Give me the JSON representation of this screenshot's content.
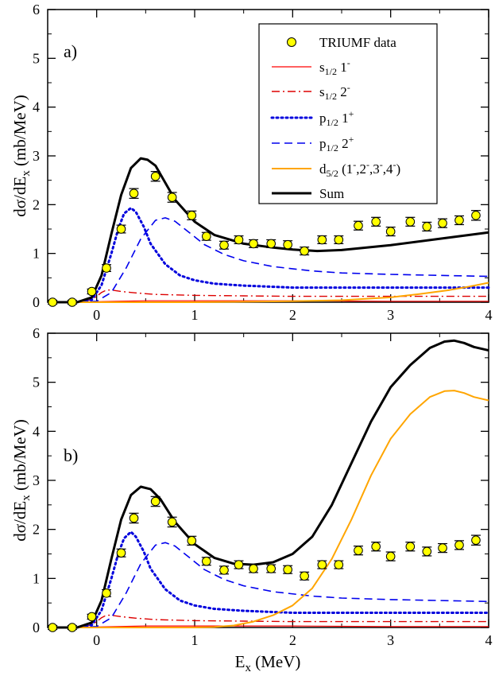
{
  "figure": {
    "xlabel": "E",
    "xlabel_sub": "x",
    "xlabel_unit": " (MeV)",
    "ylabel_pre": "dσ/dE",
    "ylabel_sub": "x",
    "ylabel_unit": " (mb/MeV)"
  },
  "chart_data": [
    {
      "type": "line",
      "panel_label": "a)",
      "xlim": [
        -0.5,
        4
      ],
      "ylim": [
        0,
        6
      ],
      "x_ticks": [
        0,
        1,
        2,
        3,
        4
      ],
      "y_ticks": [
        0,
        1,
        2,
        3,
        4,
        5,
        6
      ],
      "grid": false,
      "legend_placement": "top-right",
      "legend": [
        {
          "key": "data",
          "label": "TRIUMF data"
        },
        {
          "key": "s12_1m",
          "label": "s1/2 1-"
        },
        {
          "key": "s12_2m",
          "label": "s1/2 2-"
        },
        {
          "key": "p12_1p",
          "label": "p1/2 1+"
        },
        {
          "key": "p12_2p",
          "label": "p1/2 2+"
        },
        {
          "key": "d52",
          "label": "d5/2 (1-,2-,3-,4-)"
        },
        {
          "key": "sum",
          "label": "Sum"
        }
      ],
      "data_points": {
        "x": [
          -0.45,
          -0.25,
          -0.05,
          0.1,
          0.25,
          0.38,
          0.6,
          0.77,
          0.97,
          1.12,
          1.3,
          1.45,
          1.6,
          1.78,
          1.95,
          2.12,
          2.3,
          2.47,
          2.67,
          2.85,
          3.0,
          3.2,
          3.37,
          3.53,
          3.7,
          3.87
        ],
        "y": [
          0.0,
          0.0,
          0.22,
          0.7,
          1.5,
          2.23,
          2.58,
          2.15,
          1.78,
          1.35,
          1.17,
          1.28,
          1.2,
          1.2,
          1.18,
          1.05,
          1.28,
          1.28,
          1.57,
          1.65,
          1.45,
          1.65,
          1.55,
          1.62,
          1.68,
          1.78
        ],
        "err": [
          0.04,
          0.04,
          0.05,
          0.07,
          0.08,
          0.1,
          0.1,
          0.1,
          0.09,
          0.08,
          0.08,
          0.08,
          0.08,
          0.08,
          0.08,
          0.08,
          0.08,
          0.08,
          0.09,
          0.09,
          0.09,
          0.09,
          0.09,
          0.09,
          0.09,
          0.1
        ]
      },
      "series": [
        {
          "key": "s12_1m",
          "color": "#ff0000",
          "style": "solid",
          "width": 1.2,
          "x": [
            -0.45,
            -0.2,
            0.0,
            0.2,
            0.5,
            1.0,
            1.5,
            2.0,
            3.0,
            4.0
          ],
          "y": [
            0.0,
            0.0,
            0.01,
            0.02,
            0.03,
            0.03,
            0.03,
            0.03,
            0.02,
            0.02
          ]
        },
        {
          "key": "s12_2m",
          "color": "#dd0000",
          "style": "dashdot",
          "width": 1.4,
          "x": [
            -0.45,
            -0.2,
            -0.05,
            0.0,
            0.05,
            0.1,
            0.15,
            0.25,
            0.4,
            0.6,
            1.0,
            1.5,
            2.0,
            3.0,
            4.0
          ],
          "y": [
            0.0,
            0.0,
            0.05,
            0.12,
            0.2,
            0.25,
            0.25,
            0.22,
            0.19,
            0.16,
            0.14,
            0.13,
            0.12,
            0.12,
            0.12
          ]
        },
        {
          "key": "p12_1p",
          "color": "#0000dd",
          "style": "dotted",
          "width": 3,
          "x": [
            -0.45,
            -0.2,
            -0.05,
            0.05,
            0.15,
            0.22,
            0.28,
            0.35,
            0.4,
            0.48,
            0.55,
            0.7,
            0.85,
            1.0,
            1.2,
            1.5,
            2.0,
            3.0,
            4.0
          ],
          "y": [
            0.0,
            0.0,
            0.05,
            0.35,
            1.0,
            1.5,
            1.82,
            1.93,
            1.85,
            1.55,
            1.2,
            0.78,
            0.55,
            0.45,
            0.38,
            0.34,
            0.3,
            0.3,
            0.3
          ]
        },
        {
          "key": "p12_2p",
          "color": "#0000ee",
          "style": "dashed",
          "width": 1.6,
          "x": [
            -0.45,
            -0.2,
            0.0,
            0.15,
            0.3,
            0.45,
            0.6,
            0.7,
            0.8,
            0.95,
            1.1,
            1.3,
            1.5,
            1.8,
            2.2,
            2.5,
            3.0,
            3.5,
            4.0
          ],
          "y": [
            0.0,
            0.0,
            0.02,
            0.2,
            0.7,
            1.3,
            1.68,
            1.73,
            1.66,
            1.42,
            1.18,
            0.98,
            0.85,
            0.73,
            0.64,
            0.6,
            0.57,
            0.55,
            0.53
          ]
        },
        {
          "key": "d52",
          "color": "#ffa500",
          "style": "solid",
          "width": 2,
          "x": [
            -0.45,
            0.0,
            1.0,
            1.5,
            2.0,
            2.5,
            3.0,
            3.3,
            3.6,
            3.8,
            4.0
          ],
          "y": [
            0.0,
            0.0,
            0.0,
            0.01,
            0.02,
            0.04,
            0.1,
            0.17,
            0.25,
            0.32,
            0.4
          ]
        },
        {
          "key": "sum",
          "color": "#000000",
          "style": "solid",
          "width": 3,
          "x": [
            -0.45,
            -0.2,
            -0.05,
            0.05,
            0.15,
            0.25,
            0.35,
            0.45,
            0.52,
            0.6,
            0.7,
            0.8,
            1.0,
            1.2,
            1.5,
            1.8,
            2.0,
            2.25,
            2.5,
            3.0,
            3.5,
            4.0
          ],
          "y": [
            0.0,
            0.0,
            0.1,
            0.55,
            1.4,
            2.2,
            2.75,
            2.95,
            2.92,
            2.8,
            2.45,
            2.1,
            1.65,
            1.38,
            1.2,
            1.12,
            1.08,
            1.05,
            1.07,
            1.17,
            1.3,
            1.43
          ]
        }
      ]
    },
    {
      "type": "line",
      "panel_label": "b)",
      "xlim": [
        -0.5,
        4
      ],
      "ylim": [
        0,
        6
      ],
      "x_ticks": [
        0,
        1,
        2,
        3,
        4
      ],
      "y_ticks": [
        0,
        1,
        2,
        3,
        4,
        5,
        6
      ],
      "grid": false,
      "data_points": {
        "x": [
          -0.45,
          -0.25,
          -0.05,
          0.1,
          0.25,
          0.38,
          0.6,
          0.77,
          0.97,
          1.12,
          1.3,
          1.45,
          1.6,
          1.78,
          1.95,
          2.12,
          2.3,
          2.47,
          2.67,
          2.85,
          3.0,
          3.2,
          3.37,
          3.53,
          3.7,
          3.87
        ],
        "y": [
          0.0,
          0.0,
          0.22,
          0.7,
          1.52,
          2.23,
          2.57,
          2.15,
          1.77,
          1.35,
          1.17,
          1.28,
          1.2,
          1.2,
          1.18,
          1.05,
          1.28,
          1.28,
          1.57,
          1.65,
          1.45,
          1.65,
          1.55,
          1.62,
          1.68,
          1.78
        ],
        "err": [
          0.04,
          0.04,
          0.05,
          0.07,
          0.08,
          0.1,
          0.1,
          0.1,
          0.09,
          0.08,
          0.08,
          0.08,
          0.08,
          0.08,
          0.08,
          0.08,
          0.08,
          0.08,
          0.09,
          0.09,
          0.09,
          0.09,
          0.09,
          0.09,
          0.09,
          0.1
        ]
      },
      "series": [
        {
          "key": "s12_1m",
          "color": "#ff0000",
          "style": "solid",
          "width": 1.2,
          "x": [
            -0.45,
            -0.2,
            0.0,
            0.2,
            0.5,
            1.0,
            1.5,
            2.0,
            3.0,
            4.0
          ],
          "y": [
            0.0,
            0.0,
            0.01,
            0.02,
            0.03,
            0.03,
            0.03,
            0.03,
            0.02,
            0.02
          ]
        },
        {
          "key": "s12_2m",
          "color": "#dd0000",
          "style": "dashdot",
          "width": 1.4,
          "x": [
            -0.45,
            -0.2,
            -0.05,
            0.0,
            0.05,
            0.1,
            0.15,
            0.25,
            0.4,
            0.6,
            1.0,
            1.5,
            2.0,
            3.0,
            4.0
          ],
          "y": [
            0.0,
            0.0,
            0.05,
            0.12,
            0.2,
            0.25,
            0.25,
            0.22,
            0.19,
            0.16,
            0.14,
            0.13,
            0.12,
            0.12,
            0.12
          ]
        },
        {
          "key": "p12_1p",
          "color": "#0000dd",
          "style": "dotted",
          "width": 3,
          "x": [
            -0.45,
            -0.2,
            -0.05,
            0.05,
            0.15,
            0.22,
            0.28,
            0.35,
            0.4,
            0.48,
            0.55,
            0.7,
            0.85,
            1.0,
            1.2,
            1.5,
            2.0,
            3.0,
            4.0
          ],
          "y": [
            0.0,
            0.0,
            0.05,
            0.35,
            1.0,
            1.5,
            1.82,
            1.95,
            1.85,
            1.55,
            1.2,
            0.78,
            0.55,
            0.45,
            0.38,
            0.34,
            0.3,
            0.3,
            0.3
          ]
        },
        {
          "key": "p12_2p",
          "color": "#0000ee",
          "style": "dashed",
          "width": 1.6,
          "x": [
            -0.45,
            -0.2,
            0.0,
            0.15,
            0.3,
            0.45,
            0.6,
            0.7,
            0.8,
            0.95,
            1.1,
            1.3,
            1.5,
            1.8,
            2.2,
            2.5,
            3.0,
            3.5,
            4.0
          ],
          "y": [
            0.0,
            0.0,
            0.02,
            0.2,
            0.7,
            1.3,
            1.68,
            1.73,
            1.66,
            1.42,
            1.18,
            0.98,
            0.85,
            0.73,
            0.64,
            0.6,
            0.57,
            0.55,
            0.53
          ]
        },
        {
          "key": "d52",
          "color": "#ffa500",
          "style": "solid",
          "width": 2,
          "x": [
            -0.45,
            1.0,
            1.2,
            1.4,
            1.6,
            1.8,
            2.0,
            2.2,
            2.4,
            2.6,
            2.8,
            3.0,
            3.2,
            3.4,
            3.55,
            3.65,
            3.75,
            3.85,
            4.0
          ],
          "y": [
            0.0,
            0.0,
            0.01,
            0.04,
            0.12,
            0.25,
            0.45,
            0.8,
            1.4,
            2.2,
            3.1,
            3.85,
            4.35,
            4.7,
            4.82,
            4.83,
            4.78,
            4.7,
            4.63
          ]
        },
        {
          "key": "sum",
          "color": "#000000",
          "style": "solid",
          "width": 3,
          "x": [
            -0.45,
            -0.2,
            -0.05,
            0.05,
            0.15,
            0.25,
            0.35,
            0.45,
            0.55,
            0.65,
            0.8,
            1.0,
            1.2,
            1.4,
            1.6,
            1.8,
            2.0,
            2.2,
            2.4,
            2.6,
            2.8,
            3.0,
            3.2,
            3.4,
            3.55,
            3.65,
            3.75,
            3.85,
            4.0
          ],
          "y": [
            0.0,
            0.0,
            0.1,
            0.55,
            1.4,
            2.2,
            2.7,
            2.87,
            2.82,
            2.62,
            2.15,
            1.7,
            1.42,
            1.3,
            1.28,
            1.33,
            1.5,
            1.85,
            2.5,
            3.35,
            4.2,
            4.9,
            5.35,
            5.7,
            5.83,
            5.85,
            5.8,
            5.72,
            5.65
          ]
        }
      ]
    }
  ]
}
